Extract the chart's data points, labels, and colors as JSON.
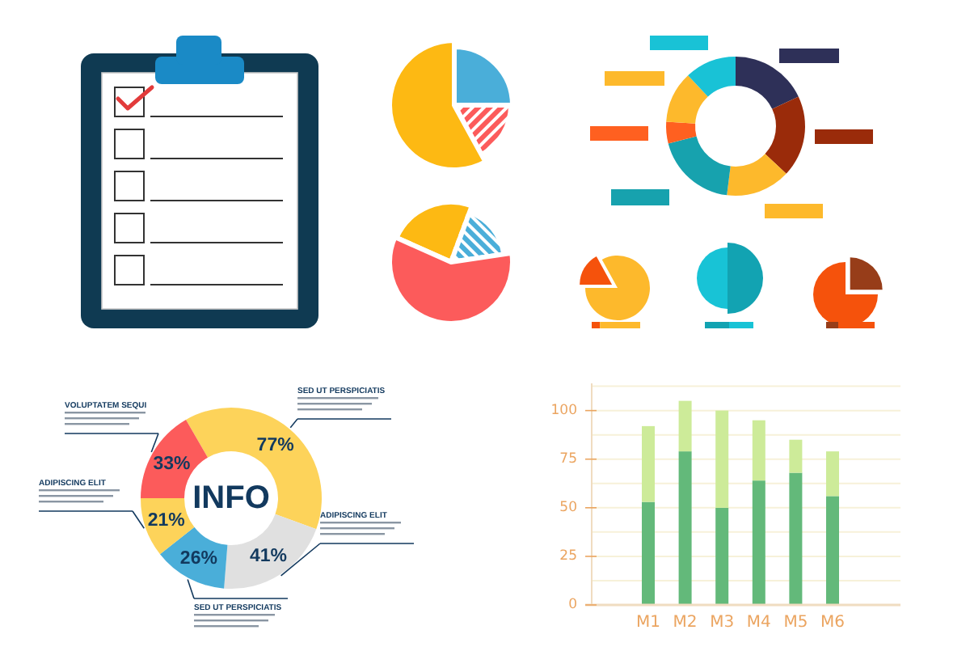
{
  "chart_data": [
    {
      "type": "pie",
      "categories": [
        null,
        null,
        null
      ],
      "values": [
        25,
        17,
        58
      ],
      "colors": [
        "#4aaed9",
        "#fc5b5b",
        "#fdb913"
      ]
    },
    {
      "type": "pie",
      "categories": [
        null,
        null,
        null
      ],
      "values": [
        24,
        17,
        59
      ],
      "colors": [
        "#fdb913",
        "#4aaed9",
        "#fc5b5b"
      ]
    },
    {
      "type": "donut",
      "categories": [
        null,
        null,
        null,
        null,
        null,
        null,
        null
      ],
      "values": [
        18,
        19,
        15,
        19,
        5,
        12,
        12
      ],
      "colors": [
        "#2e3058",
        "#9a2b0a",
        "#fdb92c",
        "#17a2ae",
        "#ff6020",
        "#fdb92c",
        "#19c2d6"
      ]
    },
    {
      "type": "pie",
      "categories": [
        null,
        null
      ],
      "values": [
        17,
        83
      ],
      "colors": [
        "#f5520c",
        "#fdb92c"
      ]
    },
    {
      "type": "pie",
      "categories": [
        null,
        null
      ],
      "values": [
        50,
        50
      ],
      "colors": [
        "#12a3b2",
        "#18c3d6"
      ]
    },
    {
      "type": "pie",
      "categories": [
        null,
        null
      ],
      "values": [
        25,
        75
      ],
      "colors": [
        "#973d19",
        "#f5520c"
      ]
    },
    {
      "type": "donut",
      "title": "INFO",
      "categories": [
        null,
        null,
        null,
        null,
        null
      ],
      "values": [
        77,
        41,
        26,
        21,
        33
      ],
      "value_labels": [
        "77%",
        "41%",
        "26%",
        "21%",
        "33%"
      ],
      "colors": [
        "#fdd35a",
        "#e0e0e0",
        "#4aaed9",
        "#fdd35a",
        "#fc5b5b"
      ],
      "annotations": [
        "SED UT PERSPICIATIS",
        "ADIPISCING ELIT",
        "SED UT PERSPICIATIS",
        "ADIPISCING ELIT",
        "VOLUPTATEM SEQUI"
      ]
    },
    {
      "type": "bar",
      "categories": [
        "M1",
        "M2",
        "M3",
        "M4",
        "M5",
        "M6"
      ],
      "stacked": true,
      "series": [
        {
          "color": "#63b97a",
          "values": [
            53,
            79,
            50,
            64,
            68,
            56
          ]
        },
        {
          "color": "#cdeb99",
          "values": [
            39,
            26,
            50,
            31,
            17,
            23
          ]
        }
      ],
      "ylim": [
        0,
        114
      ],
      "yticks": [
        0,
        {
          "value": 12.5,
          "label": null
        },
        25,
        {
          "value": 37.5,
          "label": null
        },
        50,
        {
          "value": 62.5,
          "label": null
        },
        75,
        {
          "value": 87.5,
          "label": null
        },
        100,
        {
          "value": 112.5,
          "label": null
        }
      ],
      "grid": "y"
    }
  ]
}
